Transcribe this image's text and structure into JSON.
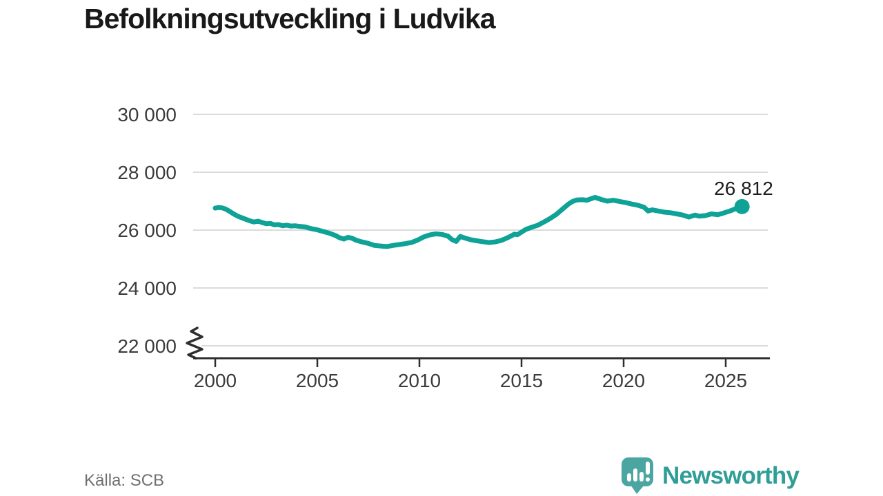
{
  "title": "Befolkningsutveckling i Ludvika",
  "source": "Källa: SCB",
  "branding": {
    "name": "Newsworthy",
    "icon": "newsworthy-bubble-chart-icon",
    "icon_color": "#4BA5A0",
    "text_color": "#2F9E97"
  },
  "chart_data": {
    "type": "line",
    "title": "Befolkningsutveckling i Ludvika",
    "xlabel": "",
    "ylabel": "",
    "grid": true,
    "legend": false,
    "y_axis_break": true,
    "x_range": [
      1999,
      2027
    ],
    "y_range_displayed": [
      22000,
      30000
    ],
    "x_ticks": [
      "2000",
      "2005",
      "2010",
      "2015",
      "2020",
      "2025"
    ],
    "x_tick_years": [
      2000,
      2005,
      2010,
      2015,
      2020,
      2025
    ],
    "y_ticks": [
      30000,
      28000,
      26000,
      24000,
      22000
    ],
    "y_tick_labels": [
      "30 000",
      "28 000",
      "26 000",
      "24 000",
      "22 000"
    ],
    "end_label": "26 812",
    "end_value": 26812,
    "colors": {
      "line": "#0FA296",
      "grid": "#DBDBDB",
      "axis": "#2E2E2E",
      "tick_text": "#3B3B3B",
      "end_label_text": "#1C1C1C",
      "title_text": "#191919",
      "source_text": "#707070"
    },
    "series": [
      {
        "name": "Befolkning",
        "color": "#0FA296",
        "points": [
          [
            2000.0,
            26760
          ],
          [
            2000.17,
            26780
          ],
          [
            2000.33,
            26770
          ],
          [
            2000.5,
            26730
          ],
          [
            2000.7,
            26650
          ],
          [
            2000.9,
            26560
          ],
          [
            2001.1,
            26480
          ],
          [
            2001.4,
            26400
          ],
          [
            2001.7,
            26320
          ],
          [
            2001.9,
            26280
          ],
          [
            2002.1,
            26310
          ],
          [
            2002.3,
            26260
          ],
          [
            2002.5,
            26220
          ],
          [
            2002.7,
            26230
          ],
          [
            2002.9,
            26180
          ],
          [
            2003.1,
            26190
          ],
          [
            2003.3,
            26150
          ],
          [
            2003.5,
            26170
          ],
          [
            2003.7,
            26140
          ],
          [
            2003.9,
            26150
          ],
          [
            2004.1,
            26130
          ],
          [
            2004.4,
            26110
          ],
          [
            2004.7,
            26050
          ],
          [
            2005.0,
            26010
          ],
          [
            2005.3,
            25950
          ],
          [
            2005.6,
            25890
          ],
          [
            2005.9,
            25810
          ],
          [
            2006.1,
            25730
          ],
          [
            2006.3,
            25690
          ],
          [
            2006.5,
            25750
          ],
          [
            2006.7,
            25720
          ],
          [
            2006.9,
            25650
          ],
          [
            2007.2,
            25590
          ],
          [
            2007.5,
            25540
          ],
          [
            2007.8,
            25470
          ],
          [
            2008.1,
            25450
          ],
          [
            2008.4,
            25430
          ],
          [
            2008.7,
            25470
          ],
          [
            2009.0,
            25500
          ],
          [
            2009.3,
            25530
          ],
          [
            2009.6,
            25570
          ],
          [
            2009.9,
            25650
          ],
          [
            2010.2,
            25760
          ],
          [
            2010.5,
            25830
          ],
          [
            2010.8,
            25870
          ],
          [
            2011.1,
            25850
          ],
          [
            2011.4,
            25790
          ],
          [
            2011.6,
            25670
          ],
          [
            2011.8,
            25610
          ],
          [
            2012.0,
            25780
          ],
          [
            2012.2,
            25730
          ],
          [
            2012.5,
            25670
          ],
          [
            2012.8,
            25630
          ],
          [
            2013.1,
            25600
          ],
          [
            2013.4,
            25570
          ],
          [
            2013.7,
            25590
          ],
          [
            2014.0,
            25640
          ],
          [
            2014.3,
            25730
          ],
          [
            2014.5,
            25800
          ],
          [
            2014.65,
            25860
          ],
          [
            2014.8,
            25840
          ],
          [
            2015.0,
            25930
          ],
          [
            2015.2,
            26020
          ],
          [
            2015.5,
            26100
          ],
          [
            2015.8,
            26170
          ],
          [
            2016.1,
            26280
          ],
          [
            2016.4,
            26400
          ],
          [
            2016.7,
            26540
          ],
          [
            2016.9,
            26660
          ],
          [
            2017.1,
            26780
          ],
          [
            2017.3,
            26900
          ],
          [
            2017.5,
            26990
          ],
          [
            2017.7,
            27040
          ],
          [
            2018.0,
            27050
          ],
          [
            2018.2,
            27030
          ],
          [
            2018.4,
            27080
          ],
          [
            2018.6,
            27130
          ],
          [
            2018.9,
            27060
          ],
          [
            2019.2,
            27000
          ],
          [
            2019.5,
            27030
          ],
          [
            2019.8,
            26990
          ],
          [
            2020.1,
            26950
          ],
          [
            2020.4,
            26900
          ],
          [
            2020.7,
            26860
          ],
          [
            2021.0,
            26790
          ],
          [
            2021.2,
            26660
          ],
          [
            2021.4,
            26700
          ],
          [
            2021.7,
            26660
          ],
          [
            2022.0,
            26620
          ],
          [
            2022.3,
            26600
          ],
          [
            2022.6,
            26560
          ],
          [
            2022.9,
            26520
          ],
          [
            2023.2,
            26450
          ],
          [
            2023.5,
            26520
          ],
          [
            2023.7,
            26480
          ],
          [
            2024.0,
            26500
          ],
          [
            2024.3,
            26560
          ],
          [
            2024.6,
            26530
          ],
          [
            2024.9,
            26590
          ],
          [
            2025.2,
            26660
          ],
          [
            2025.5,
            26740
          ],
          [
            2025.8,
            26812
          ]
        ]
      }
    ]
  }
}
